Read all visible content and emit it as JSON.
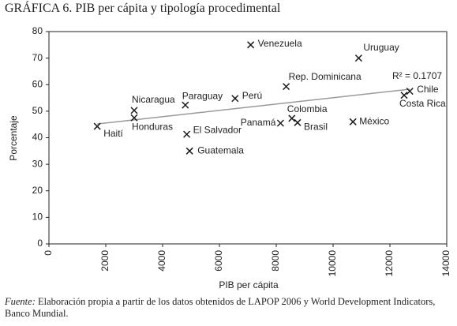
{
  "chart_data": {
    "type": "scatter",
    "title": "GRÁFICA 6. PIB per cápita y tipología procedimental",
    "x_label": "PIB per cápita",
    "y_label": "Porcentaje",
    "xlim": [
      0,
      14000
    ],
    "xticks": [
      0,
      2000,
      4000,
      6000,
      8000,
      10000,
      12000,
      14000
    ],
    "ylim": [
      0,
      80
    ],
    "yticks": [
      0,
      10,
      20,
      30,
      40,
      50,
      60,
      70,
      80
    ],
    "color": "#1a1a1a",
    "labels": [
      "Haití",
      "Nicaragua",
      "Honduras",
      "Paraguay",
      "El Salvador",
      "Guatemala",
      "Perú",
      "Venezuela",
      "Rep. Dominicana",
      "Panamá",
      "Colombia",
      "Brasil",
      "México",
      "Uruguay",
      "Chile",
      "Costa Rica"
    ],
    "x": [
      1700,
      3000,
      3000,
      4800,
      4850,
      4950,
      6550,
      7100,
      8350,
      8150,
      8550,
      8750,
      10700,
      10900,
      12700,
      12500
    ],
    "values": [
      44.3,
      50.3,
      47.5,
      52.3,
      41.3,
      35,
      54.8,
      75,
      59.3,
      45.5,
      47.3,
      45.7,
      46,
      70,
      57.5,
      56
    ],
    "trendline": {
      "color": "#999999",
      "x": [
        1700,
        12700
      ],
      "values": [
        45.2,
        58.3
      ]
    },
    "annotation": "R² = 0.1707",
    "source_label": "Fuente:",
    "source": "Elaboración propia a partir de los datos obtenidos de LAPOP 2006 y World Development Indicators, Banco Mundial."
  }
}
